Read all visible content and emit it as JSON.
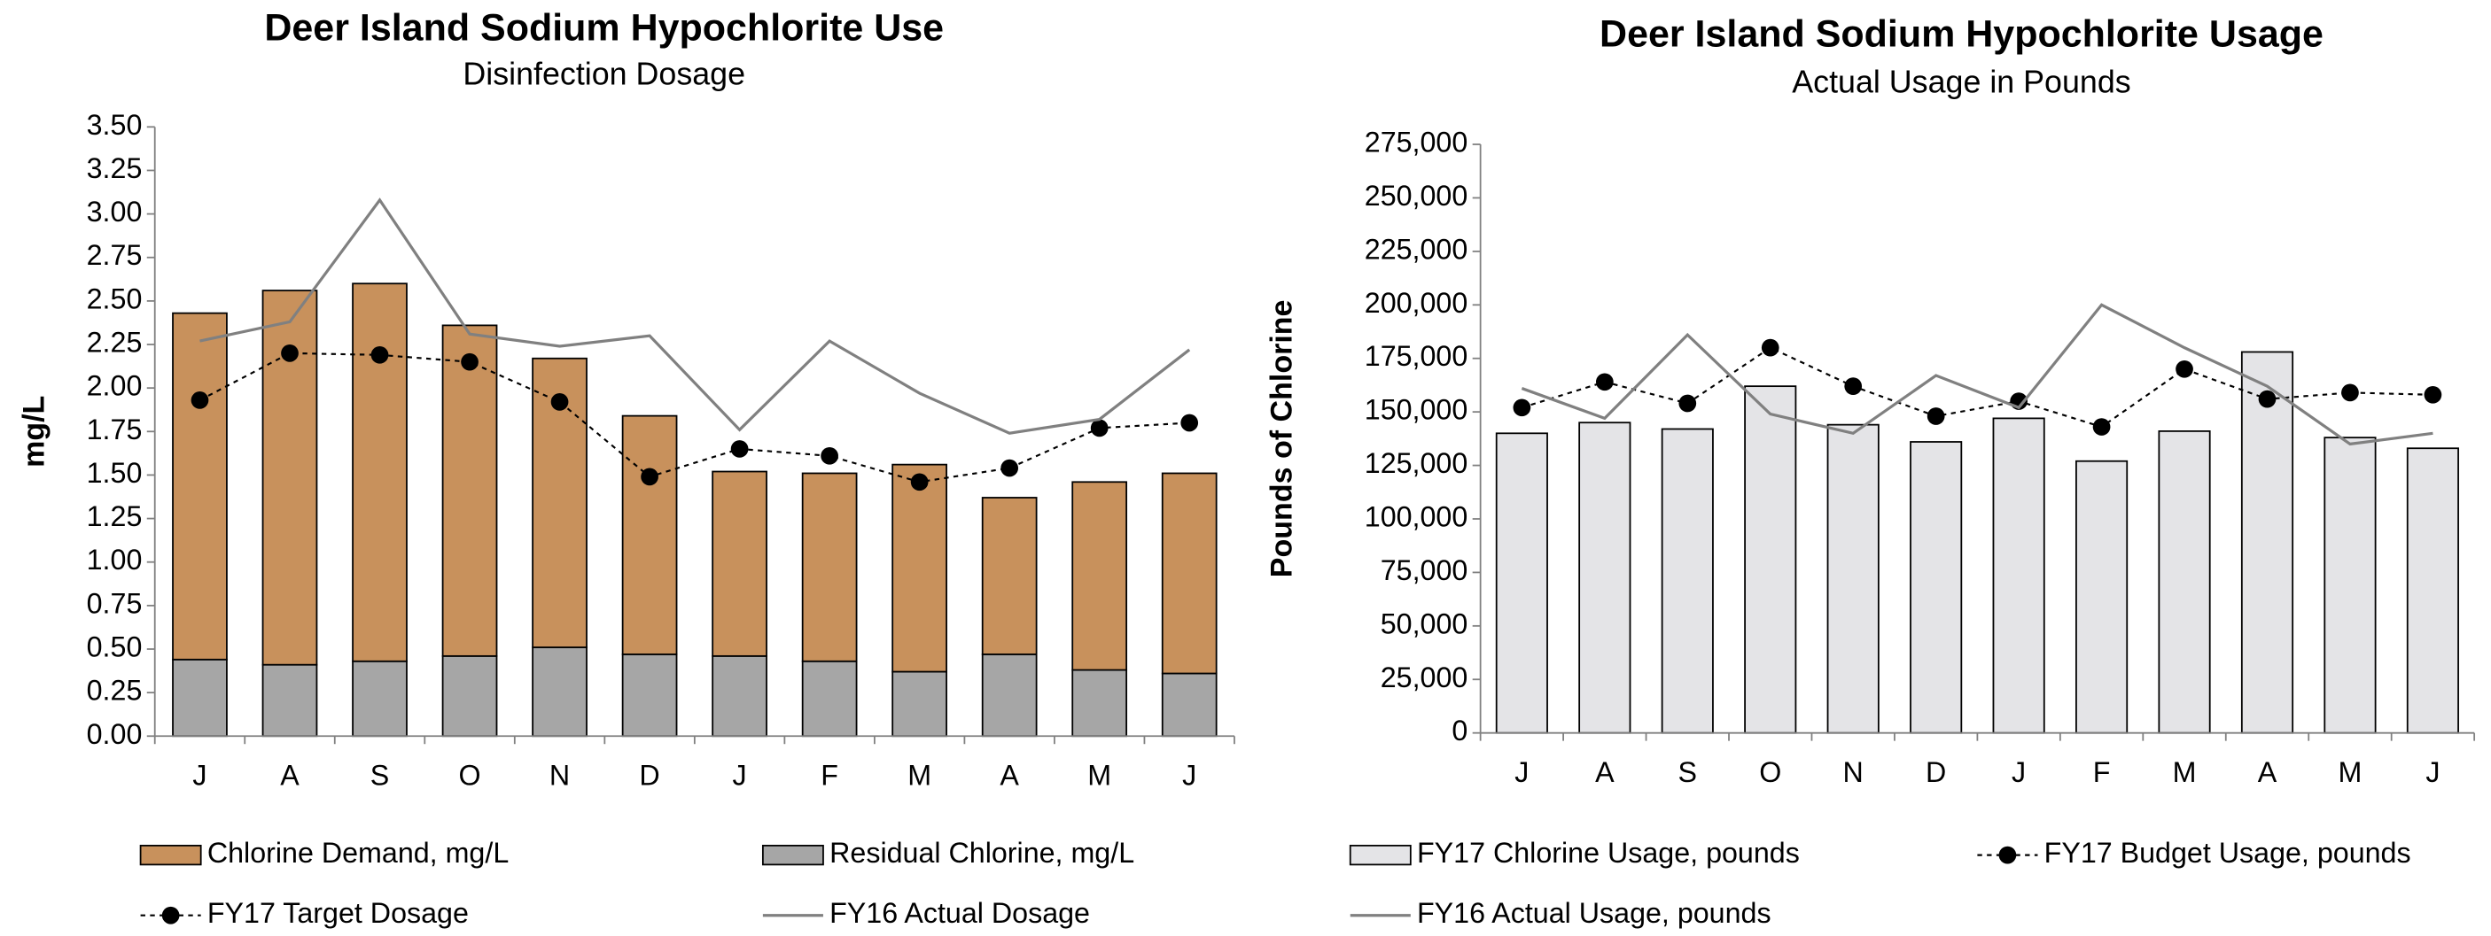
{
  "chart_data": [
    {
      "type": "bar",
      "title": "Deer Island Sodium Hypochlorite Use",
      "subtitle": "Disinfection Dosage",
      "ylabel": "mg/L",
      "categories": [
        "J",
        "A",
        "S",
        "O",
        "N",
        "D",
        "J",
        "F",
        "M",
        "A",
        "M",
        "J"
      ],
      "stacked": true,
      "series": [
        {
          "name": "Residual Chlorine, mg/L",
          "type": "bar",
          "color": "#a6a6a6",
          "values": [
            0.44,
            0.41,
            0.43,
            0.46,
            0.51,
            0.47,
            0.46,
            0.43,
            0.37,
            0.47,
            0.38,
            0.36
          ]
        },
        {
          "name": "Chlorine Demand, mg/L",
          "type": "bar",
          "color": "#c8915c",
          "values": [
            1.99,
            2.15,
            2.17,
            1.9,
            1.66,
            1.37,
            1.06,
            1.08,
            1.19,
            0.9,
            1.08,
            1.15
          ]
        },
        {
          "name": "FY17 Target Dosage",
          "type": "line",
          "color": "#000000",
          "dash": true,
          "marker": "circle",
          "values": [
            1.93,
            2.2,
            2.19,
            2.15,
            1.92,
            1.49,
            1.65,
            1.61,
            1.46,
            1.54,
            1.77,
            1.8
          ]
        },
        {
          "name": "FY16 Actual Dosage",
          "type": "line",
          "color": "#808080",
          "values": [
            2.27,
            2.38,
            3.08,
            2.31,
            2.24,
            2.3,
            1.76,
            2.27,
            1.97,
            1.74,
            1.82,
            2.22
          ]
        }
      ],
      "ylim": [
        0,
        3.5
      ],
      "yticks": [
        {
          "value": 0,
          "label": "0.00"
        },
        {
          "value": 0.25,
          "label": "0.25"
        },
        {
          "value": 0.5,
          "label": "0.50"
        },
        {
          "value": 0.75,
          "label": "0.75"
        },
        {
          "value": 1,
          "label": "1.00"
        },
        {
          "value": 1.25,
          "label": "1.25"
        },
        {
          "value": 1.5,
          "label": "1.50"
        },
        {
          "value": 1.75,
          "label": "1.75"
        },
        {
          "value": 2,
          "label": "2.00"
        },
        {
          "value": 2.25,
          "label": "2.25"
        },
        {
          "value": 2.5,
          "label": "2.50"
        },
        {
          "value": 2.75,
          "label": "2.75"
        },
        {
          "value": 3,
          "label": "3.00"
        },
        {
          "value": 3.25,
          "label": "3.25"
        },
        {
          "value": 3.5,
          "label": "3.50"
        }
      ]
    },
    {
      "type": "bar",
      "title": "Deer Island Sodium Hypochlorite Usage",
      "subtitle": "Actual Usage in Pounds",
      "ylabel": "Pounds of Chlorine",
      "categories": [
        "J",
        "A",
        "S",
        "O",
        "N",
        "D",
        "J",
        "F",
        "M",
        "A",
        "M",
        "J"
      ],
      "stacked": false,
      "series": [
        {
          "name": "FY17 Chlorine Usage, pounds",
          "type": "bar",
          "color": "#e4e4e7",
          "values": [
            140000,
            145000,
            142000,
            162000,
            144000,
            136000,
            147000,
            127000,
            141000,
            178000,
            138000,
            133000
          ]
        },
        {
          "name": "FY17 Budget Usage, pounds",
          "type": "line",
          "color": "#000000",
          "dash": true,
          "marker": "circle",
          "values": [
            152000,
            164000,
            154000,
            180000,
            162000,
            148000,
            155000,
            143000,
            170000,
            156000,
            159000,
            158000
          ]
        },
        {
          "name": "FY16 Actual Usage, pounds",
          "type": "line",
          "color": "#808080",
          "values": [
            161000,
            147000,
            186000,
            149000,
            140000,
            167000,
            152000,
            200000,
            180000,
            162000,
            135000,
            140000
          ]
        }
      ],
      "ylim": [
        0,
        275000
      ],
      "yticks": [
        0,
        {
          "value": 25000,
          "label": "25,000"
        },
        {
          "value": 50000,
          "label": "50,000"
        },
        {
          "value": 75000,
          "label": "75,000"
        },
        {
          "value": 100000,
          "label": "100,000"
        },
        {
          "value": 125000,
          "label": "125,000"
        },
        {
          "value": 150000,
          "label": "150,000"
        },
        {
          "value": 175000,
          "label": "175,000"
        },
        {
          "value": 200000,
          "label": "200,000"
        },
        {
          "value": 225000,
          "label": "225,000"
        },
        {
          "value": 250000,
          "label": "250,000"
        },
        {
          "value": 275000,
          "label": "275,000"
        }
      ]
    }
  ]
}
